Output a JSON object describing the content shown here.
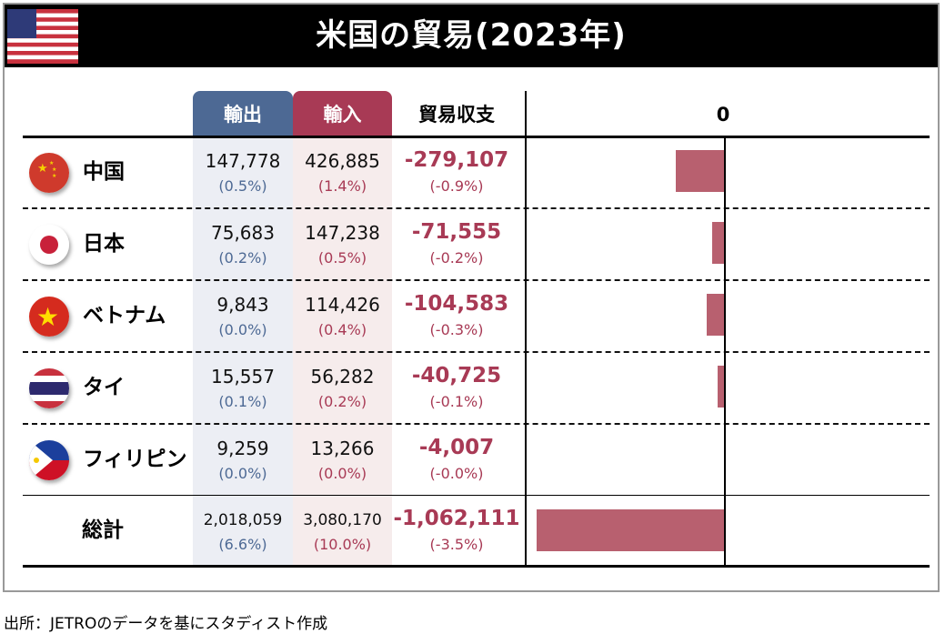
{
  "title": "米国の貿易(2023年)",
  "headers": {
    "export": "輸出",
    "import": "輸入",
    "balance": "貿易収支",
    "zero": "0"
  },
  "colors": {
    "export": "#4d6994",
    "import": "#a83a55",
    "bar": "#b8606f"
  },
  "rows": [
    {
      "name": "中国",
      "flag": "china-flag",
      "export": "147,778",
      "export_pct": "(0.5%)",
      "import": "426,885",
      "import_pct": "(1.4%)",
      "balance": "-279,107",
      "balance_pct": "(-0.9%)"
    },
    {
      "name": "日本",
      "flag": "japan-flag",
      "export": "75,683",
      "export_pct": "(0.2%)",
      "import": "147,238",
      "import_pct": "(0.5%)",
      "balance": "-71,555",
      "balance_pct": "(-0.2%)"
    },
    {
      "name": "ベトナム",
      "flag": "vietnam-flag",
      "export": "9,843",
      "export_pct": "(0.0%)",
      "import": "114,426",
      "import_pct": "(0.4%)",
      "balance": "-104,583",
      "balance_pct": "(-0.3%)"
    },
    {
      "name": "タイ",
      "flag": "thailand-flag",
      "export": "15,557",
      "export_pct": "(0.1%)",
      "import": "56,282",
      "import_pct": "(0.2%)",
      "balance": "-40,725",
      "balance_pct": "(-0.1%)"
    },
    {
      "name": "フィリピン",
      "flag": "philippines-flag",
      "export": "9,259",
      "export_pct": "(0.0%)",
      "import": "13,266",
      "import_pct": "(0.0%)",
      "balance": "-4,007",
      "balance_pct": "(-0.0%)"
    }
  ],
  "total": {
    "name": "総計",
    "export": "2,018,059",
    "export_pct": "(6.6%)",
    "import": "3,080,170",
    "import_pct": "(10.0%)",
    "balance": "-1,062,111",
    "balance_pct": "(-3.5%)"
  },
  "chart_data": {
    "type": "bar",
    "orientation": "horizontal",
    "categories": [
      "中国",
      "日本",
      "ベトナム",
      "タイ",
      "フィリピン",
      "総計"
    ],
    "values": [
      -279107,
      -71555,
      -104583,
      -40725,
      -4007,
      -1062111
    ],
    "tick_labels": [
      "0"
    ]
  },
  "source": "出所：JETROのデータを基にスタディスト作成"
}
